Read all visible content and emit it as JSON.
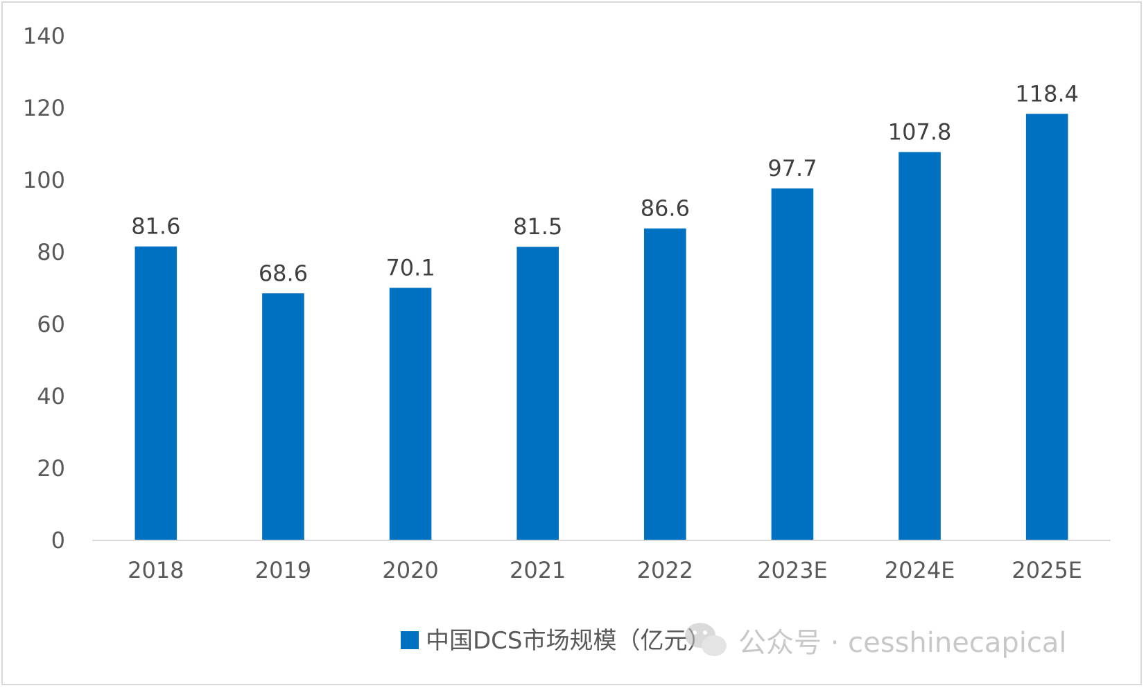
{
  "chart_data": {
    "type": "bar",
    "categories": [
      "2018",
      "2019",
      "2020",
      "2021",
      "2022",
      "2023E",
      "2024E",
      "2025E"
    ],
    "series": [
      {
        "name": "中国DCS市场规模（亿元）",
        "values": [
          81.6,
          68.6,
          70.1,
          81.5,
          86.6,
          97.7,
          107.8,
          118.4
        ]
      }
    ],
    "data_labels": [
      "81.6",
      "68.6",
      "70.1",
      "81.5",
      "86.6",
      "97.7",
      "107.8",
      "118.4"
    ],
    "yticks": [
      0,
      20,
      40,
      60,
      80,
      100,
      120,
      140
    ],
    "ylim": [
      0,
      140
    ],
    "grid": false,
    "legend_position": "bottom-center",
    "bar_color": "#0070C0"
  },
  "watermark": {
    "text": "公众号 · cesshinecapical",
    "icon": "wechat-icon"
  }
}
